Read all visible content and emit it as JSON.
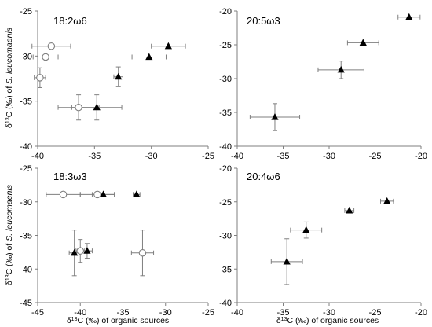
{
  "colors": {
    "axis": "#7f7f7f",
    "marker": "#000000",
    "open_fill": "#ffffff",
    "open_stroke": "#7f7f7f",
    "error_bar": "#7f7f7f"
  },
  "chart_data": [
    {
      "type": "scatter",
      "title": "18:2ω6",
      "xlim": [
        -40,
        -25
      ],
      "ylim": [
        -40,
        -25
      ],
      "xticks": [
        -40,
        -35,
        -30,
        -25
      ],
      "yticks": [
        -40,
        -35,
        -30,
        -25
      ],
      "xlabel": "",
      "ylabel": "δ13C (‰) of S. leucomaenis",
      "series": [
        {
          "marker": "circle-open",
          "points": [
            {
              "x": -38.8,
              "y": -28.9,
              "xerr": 1.7,
              "yerr": 0
            },
            {
              "x": -39.3,
              "y": -30.1,
              "xerr": 1.1,
              "yerr": 0
            },
            {
              "x": -39.8,
              "y": -32.4,
              "xerr": 0.5,
              "yerr": 1.1
            },
            {
              "x": -36.4,
              "y": -35.7,
              "xerr": 1.8,
              "yerr": 1.4
            }
          ]
        },
        {
          "marker": "triangle-filled",
          "points": [
            {
              "x": -28.5,
              "y": -28.9,
              "xerr": 1.5,
              "yerr": 0
            },
            {
              "x": -30.2,
              "y": -30.1,
              "xerr": 1.5,
              "yerr": 0
            },
            {
              "x": -32.9,
              "y": -32.3,
              "xerr": 0.4,
              "yerr": 1.1
            },
            {
              "x": -34.8,
              "y": -35.7,
              "xerr": 2.2,
              "yerr": 1.4
            }
          ]
        }
      ]
    },
    {
      "type": "scatter",
      "title": "20:5ω3",
      "xlim": [
        -40,
        -20
      ],
      "ylim": [
        -40,
        -20
      ],
      "xticks": [
        -40,
        -35,
        -30,
        -25,
        -20
      ],
      "yticks": [
        -40,
        -35,
        -30,
        -25,
        -20
      ],
      "xlabel": "",
      "ylabel": "",
      "series": [
        {
          "marker": "triangle-filled",
          "points": [
            {
              "x": -21.3,
              "y": -20.9,
              "xerr": 1.2,
              "yerr": 0
            },
            {
              "x": -26.3,
              "y": -24.7,
              "xerr": 1.7,
              "yerr": 0
            },
            {
              "x": -28.7,
              "y": -28.7,
              "xerr": 2.5,
              "yerr": 1.3
            },
            {
              "x": -35.9,
              "y": -35.7,
              "xerr": 2.7,
              "yerr": 2.0
            }
          ]
        }
      ]
    },
    {
      "type": "scatter",
      "title": "18:3ω3",
      "xlim": [
        -45,
        -25
      ],
      "ylim": [
        -45,
        -25
      ],
      "xticks": [
        -45,
        -40,
        -35,
        -30,
        -25
      ],
      "yticks": [
        -45,
        -40,
        -35,
        -30,
        -25
      ],
      "xlabel": "δ13C (‰) of organic sources",
      "ylabel": "δ13C (‰) of S. leucomaenis",
      "series": [
        {
          "marker": "circle-open",
          "points": [
            {
              "x": -42.0,
              "y": -28.9,
              "xerr": 2.0,
              "yerr": 0
            },
            {
              "x": -38.0,
              "y": -28.9,
              "xerr": 2.0,
              "yerr": 0
            },
            {
              "x": -40.0,
              "y": -37.3,
              "xerr": 0.5,
              "yerr": 1.7
            },
            {
              "x": -32.7,
              "y": -37.6,
              "xerr": 1.3,
              "yerr": 3.4
            }
          ]
        },
        {
          "marker": "triangle-filled",
          "points": [
            {
              "x": -37.3,
              "y": -28.9,
              "xerr": 1.3,
              "yerr": 0
            },
            {
              "x": -33.4,
              "y": -28.9,
              "xerr": 0.4,
              "yerr": 0
            },
            {
              "x": -40.7,
              "y": -37.6,
              "xerr": 0.6,
              "yerr": 3.4
            },
            {
              "x": -39.2,
              "y": -37.3,
              "xerr": 0.6,
              "yerr": 1.1
            }
          ]
        }
      ]
    },
    {
      "type": "scatter",
      "title": "20:4ω6",
      "xlim": [
        -40,
        -20
      ],
      "ylim": [
        -40,
        -20
      ],
      "xticks": [
        -40,
        -35,
        -30,
        -25,
        -20
      ],
      "yticks": [
        -40,
        -35,
        -30,
        -25,
        -20
      ],
      "xlabel": "δ13C (‰) of organic sources",
      "ylabel": "",
      "series": [
        {
          "marker": "triangle-filled",
          "points": [
            {
              "x": -23.7,
              "y": -24.9,
              "xerr": 0.7,
              "yerr": 0
            },
            {
              "x": -27.8,
              "y": -26.3,
              "xerr": 0.5,
              "yerr": 0
            },
            {
              "x": -32.5,
              "y": -29.2,
              "xerr": 1.7,
              "yerr": 1.2
            },
            {
              "x": -34.6,
              "y": -33.9,
              "xerr": 1.7,
              "yerr": 3.4
            }
          ]
        }
      ]
    }
  ]
}
